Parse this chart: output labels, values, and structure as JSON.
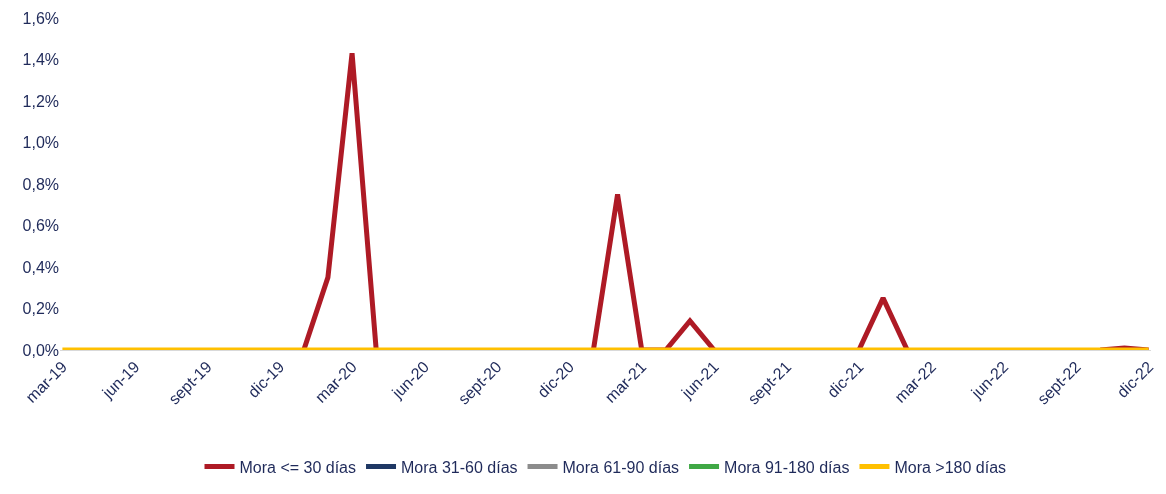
{
  "chart_data": {
    "type": "line",
    "categories": [
      "mar-19",
      null,
      null,
      "jun-19",
      null,
      null,
      "sept-19",
      null,
      null,
      "dic-19",
      null,
      null,
      "mar-20",
      null,
      null,
      "jun-20",
      null,
      null,
      "sept-20",
      null,
      null,
      "dic-20",
      null,
      null,
      "mar-21",
      null,
      null,
      "jun-21",
      null,
      null,
      "sept-21",
      null,
      null,
      "dic-21",
      null,
      null,
      "mar-22",
      null,
      null,
      "jun-22",
      null,
      null,
      "sept-22",
      null,
      null,
      "dic-22"
    ],
    "series": [
      {
        "name": "Mora <= 30 días",
        "color": "#ae1a25",
        "values": [
          null,
          null,
          null,
          null,
          null,
          null,
          null,
          null,
          null,
          null,
          0,
          0.35,
          1.43,
          0,
          null,
          null,
          null,
          null,
          null,
          null,
          null,
          null,
          0,
          0.75,
          0,
          0,
          0.14,
          0,
          null,
          null,
          null,
          null,
          null,
          0,
          0.25,
          0,
          null,
          null,
          null,
          null,
          null,
          null,
          null,
          0,
          0.01,
          0
        ]
      },
      {
        "name": "Mora 31-60 días",
        "color": "#1f3864",
        "values": [
          null,
          null,
          null,
          null,
          null,
          null,
          null,
          null,
          null,
          null,
          null,
          null,
          null,
          null,
          null,
          null,
          null,
          null,
          null,
          null,
          null,
          null,
          null,
          null,
          null,
          null,
          null,
          null,
          null,
          null,
          null,
          null,
          null,
          null,
          null,
          null,
          null,
          null,
          null,
          null,
          null,
          null,
          null,
          null,
          null,
          null
        ]
      },
      {
        "name": "Mora 61-90 días",
        "color": "#8c8c8c",
        "values": [
          null,
          null,
          null,
          null,
          null,
          null,
          null,
          null,
          null,
          null,
          null,
          null,
          null,
          null,
          null,
          null,
          null,
          null,
          null,
          null,
          null,
          null,
          null,
          null,
          null,
          null,
          null,
          null,
          null,
          null,
          null,
          null,
          null,
          null,
          null,
          null,
          null,
          null,
          null,
          null,
          null,
          null,
          null,
          null,
          null,
          null
        ]
      },
      {
        "name": "Mora 91-180 días",
        "color": "#3fa845",
        "values": [
          null,
          null,
          null,
          null,
          null,
          null,
          null,
          null,
          null,
          null,
          null,
          null,
          null,
          null,
          null,
          null,
          null,
          null,
          null,
          null,
          null,
          null,
          null,
          null,
          null,
          null,
          null,
          null,
          null,
          null,
          null,
          null,
          null,
          null,
          null,
          null,
          null,
          null,
          null,
          null,
          null,
          null,
          null,
          null,
          null,
          null
        ]
      },
      {
        "name": "Mora >180 días",
        "color": "#ffc000",
        "values": [
          0,
          0,
          0,
          0,
          0,
          0,
          0,
          0,
          0,
          0,
          0,
          0,
          0,
          0,
          0,
          0,
          0,
          0,
          0,
          0,
          0,
          0,
          0,
          0,
          0,
          0,
          0,
          0,
          0,
          0,
          0,
          0,
          0,
          0,
          0,
          0,
          0,
          0,
          0,
          0,
          0,
          0,
          0,
          0,
          0,
          0
        ]
      }
    ],
    "ylim": [
      0,
      1.6
    ],
    "yticks": [
      {
        "value": 0,
        "label": "0,0%"
      },
      {
        "value": 0.2,
        "label": "0,2%"
      },
      {
        "value": 0.4,
        "label": "0,4%"
      },
      {
        "value": 0.6,
        "label": "0,6%"
      },
      {
        "value": 0.8,
        "label": "0,8%"
      },
      {
        "value": 1.0,
        "label": "1,0%"
      },
      {
        "value": 1.2,
        "label": "1,2%"
      },
      {
        "value": 1.4,
        "label": "1,4%"
      },
      {
        "value": 1.6,
        "label": "1,6%"
      }
    ],
    "legend": "bottom",
    "marker": "none",
    "line_style": "solid"
  }
}
